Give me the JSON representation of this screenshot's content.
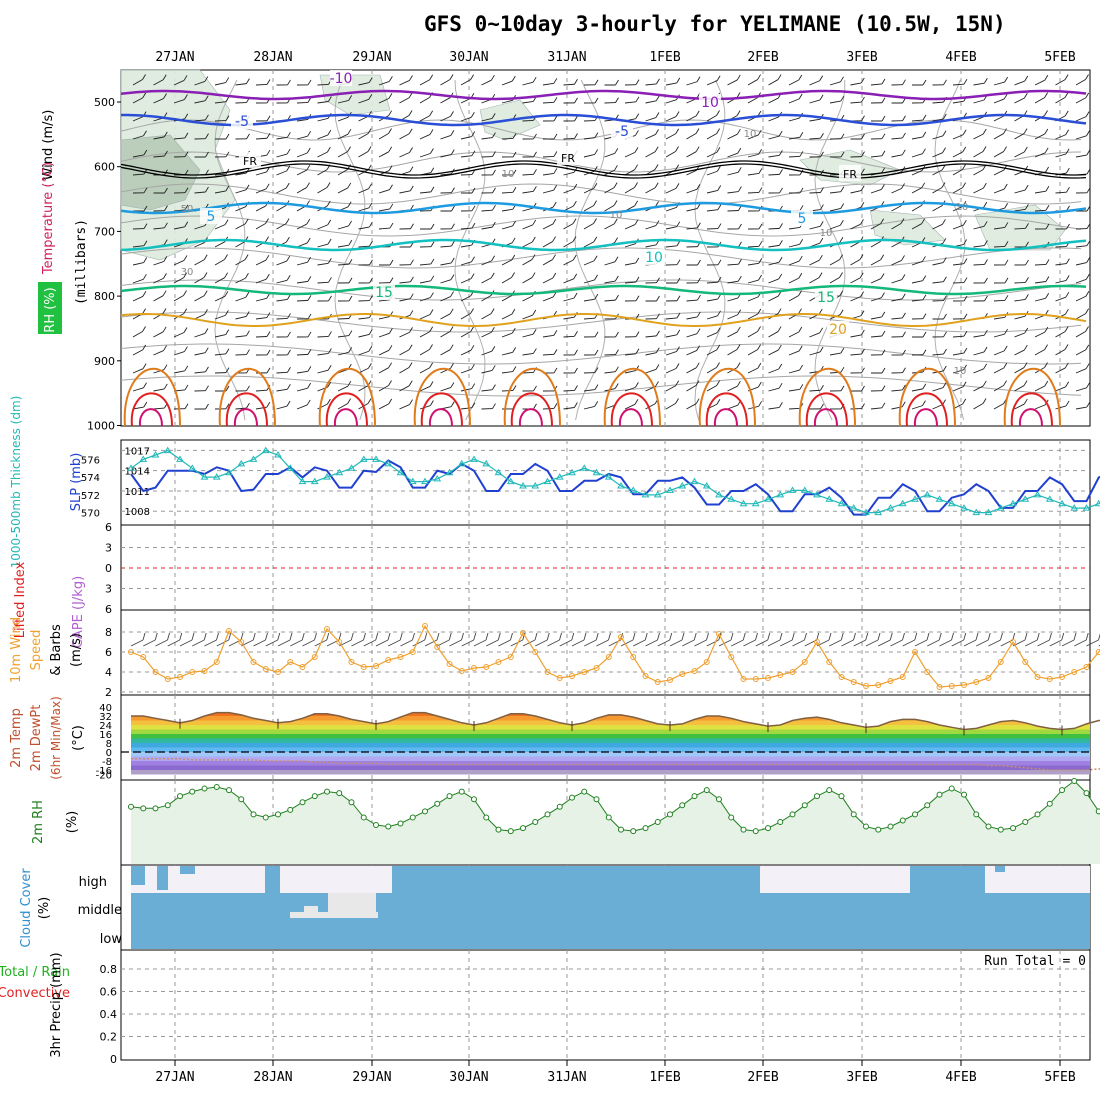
{
  "title": "GFS 0~10day 3-hourly for YELIMANE (10.5W, 15N)",
  "dates": [
    "27JAN",
    "28JAN",
    "29JAN",
    "30JAN",
    "31JAN",
    "1FEB",
    "2FEB",
    "3FEB",
    "4FEB",
    "5FEB"
  ],
  "colors": {
    "purple": "#8a1fb5",
    "blue": "#2a4fd6",
    "skyblue": "#1e9be0",
    "teal": "#13bfbf",
    "green": "#14b87a",
    "orange": "#e0a21c",
    "darkorange": "#e07b1c",
    "red": "#e02020",
    "magenta": "#d01070",
    "slp": "#2040d0",
    "thick": "#20b8b8",
    "wind": "#f0a030",
    "rh": "#208020",
    "cloud": "#6aaed6",
    "grid": "#9a9a9a"
  },
  "panel_upper": {
    "ylabel_wind": "Wind (m/s)",
    "ylabel_temp": "Temperature (°C)",
    "ylabel_rh": "RH (%)",
    "ylabel_mb": "(millibars)",
    "yticks": [
      "500",
      "600",
      "700",
      "800",
      "900",
      "1000"
    ],
    "contour_labels": {
      "m10a": "-10",
      "m10b": "10",
      "m5a": "-5",
      "m5b": "-5",
      "fr1": "FR",
      "fr2": "FR",
      "fr3": "FR",
      "p5a": "5",
      "p5b": "5",
      "p10": "10",
      "p15a": "15",
      "p15b": "15",
      "p20": "20"
    },
    "rh_labels": {
      "r50": "50",
      "r30": "30",
      "r10a": "10",
      "r10b": "10",
      "r10c": "10",
      "r10d": "10",
      "r10e": "10",
      "r10f": "10"
    }
  },
  "panel_slp": {
    "ylabel_thick": "1000-500mb Thickness (dm)",
    "ylabel_slp": "SLP (mb)",
    "left_ticks": [
      "576",
      "574",
      "572",
      "570"
    ],
    "right_ticks": [
      "1017",
      "1014",
      "1011",
      "1008"
    ]
  },
  "panel_cape": {
    "ylabel_li": "Lifted Index",
    "ylabel_cape": "CAPE (J/kg)",
    "yticks": [
      "6",
      "3",
      "0",
      "3",
      "6"
    ]
  },
  "panel_wind": {
    "ylabel1": "10m Wind",
    "ylabel2": "Speed",
    "ylabel3": "& Barbs",
    "ylabel_unit": "(m/s)",
    "yticks": [
      "8",
      "6",
      "4",
      "2"
    ]
  },
  "panel_temp": {
    "ylabel1": "2m Temp",
    "ylabel2": "2m DewPt",
    "ylabel3": "(6hr Min/Max)",
    "ylabel_unit": "(°C)",
    "yticks": [
      "40",
      "32",
      "24",
      "16",
      "8",
      "0",
      "-8",
      "-16",
      "-20"
    ]
  },
  "panel_rh2m": {
    "ylabel": "2m RH",
    "ylabel_unit": "(%)"
  },
  "panel_cloud": {
    "ylabel": "Cloud Cover",
    "ylabel_unit": "(%)",
    "levels": [
      "high",
      "middle",
      "low"
    ]
  },
  "panel_precip": {
    "ylabel1": "Total / Rain",
    "ylabel2": "Convective",
    "ylabel3": "3hr Precip (mm)",
    "run_total": "Run Total = 0",
    "yticks": [
      "0.8",
      "0.6",
      "0.4",
      "0.2",
      "0"
    ]
  },
  "chart_data": [
    {
      "type": "line",
      "title": "SLP (mb)",
      "x_unit": "3-hourly steps from 26 Jan 09Z",
      "series": [
        {
          "name": "SLP (mb)",
          "values": [
            1013.5,
            1011,
            1011.5,
            1014,
            1014,
            1014,
            1013.5,
            1014.5,
            1014,
            1011,
            1011.2,
            1013.5,
            1013.5,
            1014.5,
            1013,
            1014.5,
            1014,
            1011.5,
            1011.5,
            1014,
            1013.8,
            1015.5,
            1014.5,
            1011.5,
            1011.5,
            1014,
            1013.5,
            1015,
            1014,
            1011,
            1011,
            1013.5,
            1013.5,
            1015,
            1014,
            1011,
            1011,
            1012.5,
            1012.5,
            1013.5,
            1013,
            1010.5,
            1010.5,
            1012.5,
            1012.5,
            1013,
            1011.5,
            1009,
            1009,
            1011,
            1011,
            1012,
            1010.5,
            1008,
            1008,
            1010.5,
            1010.5,
            1011.5,
            1010,
            1007.5,
            1007.5,
            1010,
            1010,
            1012,
            1011,
            1008,
            1008,
            1010,
            1010.5,
            1012,
            1011,
            1008.5,
            1008.5,
            1011,
            1011,
            1013,
            1012,
            1009.5,
            1009.5,
            1013,
            1013.5,
            1015.5,
            1014.5,
            1011,
            1011,
            1014,
            1015,
            1017,
            1016,
            1016.5
          ]
        }
      ]
    },
    {
      "type": "line",
      "title": "1000-500mb Thickness (dm)",
      "series": [
        {
          "name": "1000-500mb Thickness (dm)",
          "values": [
            575,
            576,
            576.5,
            577,
            576,
            575,
            574,
            574,
            574.5,
            575.5,
            576,
            577,
            576.5,
            575,
            573.5,
            573.5,
            574,
            574.5,
            575,
            576,
            576,
            575.5,
            574.5,
            573.5,
            573.5,
            573.8,
            574.5,
            575.5,
            576,
            575.5,
            574.5,
            573.5,
            573,
            573,
            573.5,
            574,
            574.5,
            575,
            574.5,
            574,
            573,
            572.5,
            572,
            572,
            572.5,
            573,
            573.5,
            573,
            572,
            571.5,
            571,
            571,
            571.5,
            572,
            572.5,
            572.5,
            572,
            571.5,
            571,
            570.5,
            570,
            570,
            570.5,
            571,
            571.5,
            572,
            571.5,
            571,
            570.5,
            570,
            570,
            570.5,
            571,
            571.5,
            572,
            571.5,
            571,
            570.5,
            570.5,
            571,
            571.5,
            572,
            572.5,
            572.5,
            572,
            571.5,
            571,
            570.5,
            570.2,
            570
          ]
        }
      ]
    },
    {
      "type": "line",
      "title": "10m Wind Speed (m/s)",
      "ylim": [
        2,
        9
      ],
      "series": [
        {
          "name": "10m Wind Speed (m/s)",
          "values": [
            6,
            5.5,
            4,
            3.3,
            3.5,
            4,
            4.1,
            5,
            8.1,
            7,
            5,
            4.3,
            4,
            5,
            4.5,
            5.5,
            8.3,
            7,
            5,
            4.5,
            4.6,
            5.2,
            5.5,
            6,
            8.6,
            6.5,
            4.8,
            4.1,
            4.4,
            4.5,
            5,
            5.5,
            7.9,
            6,
            4,
            3.4,
            3.6,
            4,
            4.4,
            5.5,
            7.5,
            5.5,
            3.6,
            3,
            3.2,
            3.8,
            4.1,
            5,
            7.8,
            5.5,
            3.3,
            3.3,
            3.4,
            3.7,
            4,
            5,
            7,
            5,
            3.5,
            3,
            2.6,
            2.7,
            3.1,
            3.5,
            6,
            4,
            2.5,
            2.6,
            2.7,
            3,
            3.4,
            5,
            7,
            5,
            3.5,
            3.3,
            3.5,
            4,
            4.5,
            6,
            7.6,
            6,
            4,
            3.2,
            3.8,
            5,
            6.1,
            6,
            6.3,
            6.2
          ]
        }
      ]
    },
    {
      "type": "area",
      "title": "2m Temp (°C)",
      "ylim": [
        -20,
        40
      ],
      "series": [
        {
          "name": "2m Temp",
          "values": [
            32,
            32,
            30,
            28,
            26,
            28,
            32,
            35,
            35,
            33,
            30,
            28,
            26,
            27,
            30,
            34,
            34,
            32,
            29,
            27,
            25,
            27,
            31,
            35,
            35,
            32,
            29,
            26,
            24,
            26,
            30,
            34,
            34,
            32,
            29,
            26,
            24,
            26,
            30,
            33,
            33,
            31,
            28,
            25,
            24,
            25,
            29,
            32,
            32,
            30,
            27,
            25,
            23,
            24,
            28,
            30,
            31,
            29,
            26,
            24,
            22,
            23,
            27,
            29,
            29,
            27,
            24,
            22,
            20,
            21,
            24,
            27,
            28,
            26,
            23,
            21,
            20,
            21,
            25,
            28,
            28,
            26,
            23,
            21,
            20,
            21,
            23,
            23,
            22,
            20
          ]
        },
        {
          "name": "2m DewPt",
          "values": [
            -6,
            -6,
            -6,
            -6,
            -6,
            -7,
            -7,
            -7,
            -7,
            -7,
            -7,
            -8,
            -8,
            -8,
            -8,
            -9,
            -9,
            -10,
            -10,
            -10,
            -10,
            -11,
            -11,
            -11,
            -11,
            -11,
            -11,
            -11,
            -11,
            -11,
            -11,
            -11,
            -11,
            -11,
            -11,
            -11,
            -11,
            -11,
            -11,
            -11,
            -11,
            -11,
            -11,
            -11,
            -11,
            -11,
            -11,
            -11,
            -11,
            -11,
            -11,
            -11,
            -11,
            -11,
            -11,
            -11,
            -11,
            -11,
            -11,
            -11,
            -11,
            -11,
            -11,
            -11,
            -11,
            -11,
            -11,
            -11,
            -11,
            -11,
            -12,
            -12,
            -13,
            -14,
            -15,
            -16,
            -16,
            -16,
            -16,
            -15,
            -15,
            -15,
            -15,
            -15,
            -15,
            -15,
            -15,
            -15,
            -15,
            -15
          ]
        }
      ]
    },
    {
      "type": "area",
      "title": "2m RH (%)",
      "series": [
        {
          "name": "2m RH (%)",
          "values": [
            35,
            34,
            34,
            36,
            42,
            45,
            47,
            48,
            46,
            40,
            30,
            28,
            30,
            33,
            38,
            42,
            45,
            44,
            38,
            28,
            23,
            22,
            24,
            28,
            32,
            37,
            42,
            45,
            40,
            28,
            20,
            19,
            21,
            25,
            30,
            35,
            41,
            45,
            40,
            28,
            20,
            19,
            21,
            25,
            30,
            36,
            42,
            46,
            40,
            28,
            20,
            19,
            21,
            25,
            30,
            36,
            42,
            46,
            42,
            30,
            22,
            20,
            22,
            26,
            30,
            36,
            43,
            47,
            43,
            30,
            22,
            20,
            21,
            25,
            30,
            37,
            46,
            52,
            44,
            32,
            25,
            25,
            28,
            30,
            30,
            27,
            22,
            20,
            24,
            27
          ]
        }
      ]
    },
    {
      "type": "bar",
      "title": "3hr Precip (mm)",
      "ylim": [
        0,
        0.9
      ],
      "series": [
        {
          "name": "3hr Precip (mm)",
          "values": [
            0
          ]
        }
      ]
    }
  ]
}
